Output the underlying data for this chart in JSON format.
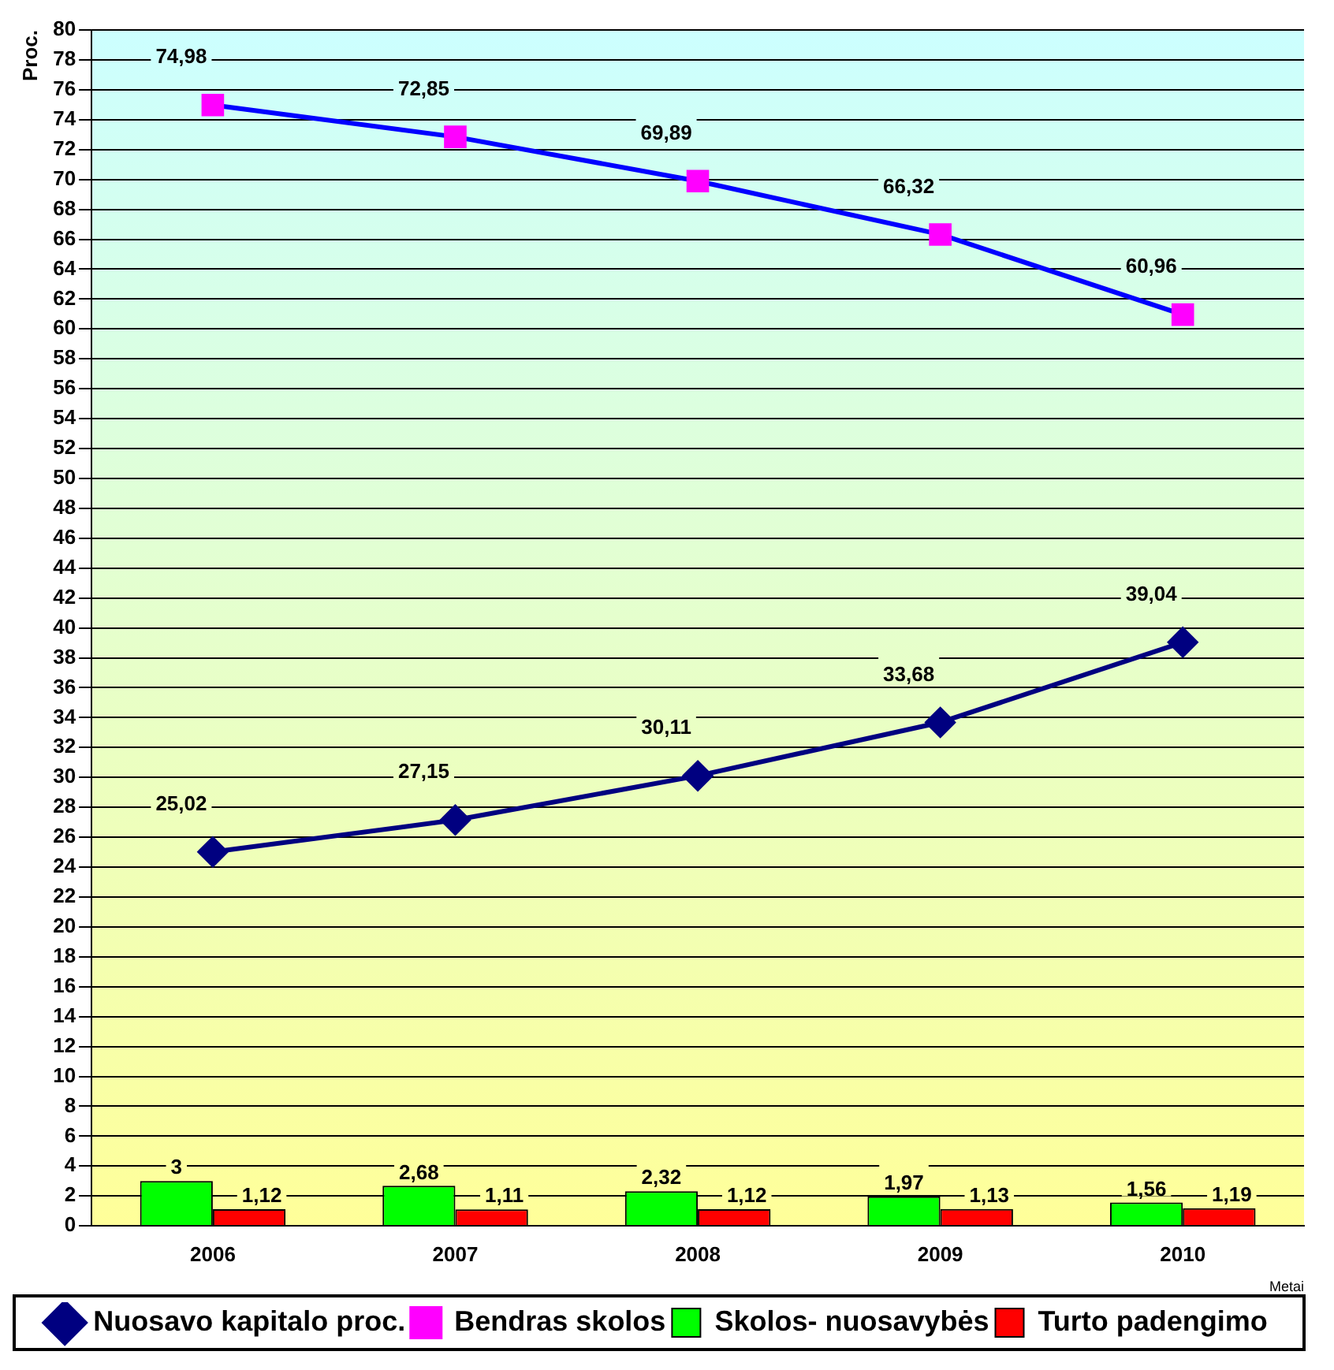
{
  "chart_data": {
    "type": "bar",
    "xlabel": "Metai",
    "ylabel": "Proc.",
    "categories": [
      "2006",
      "2007",
      "2008",
      "2009",
      "2010"
    ],
    "series": [
      {
        "name": "Skolos- nuosavybės",
        "color": "#00ff00",
        "values": [
          3,
          2.68,
          2.32,
          1.97,
          1.56
        ],
        "value_labels": [
          "3",
          "2,68",
          "2,32",
          "1,97",
          "1,56"
        ]
      },
      {
        "name": "Turto padengimo",
        "color": "#ff0000",
        "values": [
          1.12,
          1.11,
          1.12,
          1.13,
          1.19
        ],
        "value_labels": [
          "1,12",
          "1,11",
          "1,12",
          "1,13",
          "1,19"
        ]
      },
      {
        "name": "Nuosavo kapitalo proc.",
        "type": "line",
        "color": "#000080",
        "marker": "diamond",
        "values": [
          25.02,
          27.15,
          30.11,
          33.68,
          39.04
        ],
        "value_labels": [
          "25,02",
          "27,15",
          "30,11",
          "33,68",
          "39,04"
        ]
      },
      {
        "name": "Bendras skolos",
        "type": "line",
        "color": "#0000ff",
        "colors": [
          "#ff00ff",
          "#ff00ff",
          "#ff00ff",
          "#ff00ff",
          "#ff00ff"
        ],
        "marker": "square",
        "values": [
          74.98,
          72.85,
          69.89,
          66.32,
          60.96
        ],
        "value_labels": [
          "74,98",
          "72,85",
          "69,89",
          "66,32",
          "60,96"
        ]
      }
    ],
    "ylim": [
      0,
      80
    ],
    "yticks": [
      0,
      2,
      4,
      6,
      8,
      10,
      12,
      14,
      16,
      18,
      20,
      22,
      24,
      26,
      28,
      30,
      32,
      34,
      36,
      38,
      40,
      42,
      44,
      46,
      48,
      50,
      52,
      54,
      56,
      58,
      60,
      62,
      64,
      66,
      68,
      70,
      72,
      74,
      76,
      78,
      80
    ],
    "grid": "y",
    "legend": "bottom"
  }
}
